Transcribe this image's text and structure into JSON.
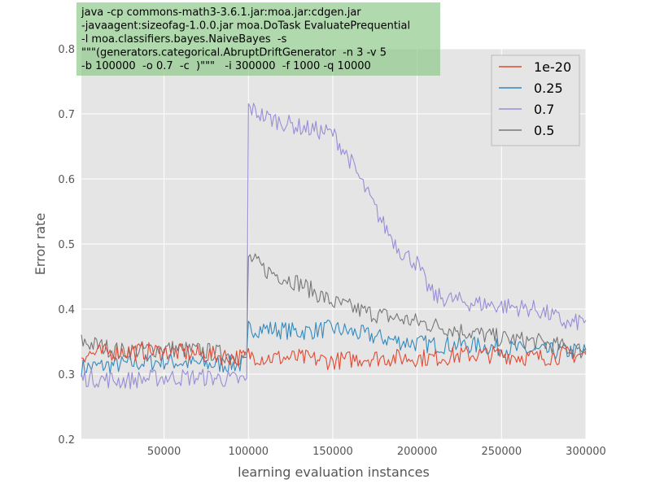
{
  "chart_data": {
    "type": "line",
    "title": "",
    "xlabel": "learning evaluation instances",
    "ylabel": "Error rate",
    "xlim": [
      1000,
      300000
    ],
    "ylim": [
      0.2,
      0.8
    ],
    "xticks": [
      50000,
      100000,
      150000,
      200000,
      250000,
      300000
    ],
    "yticks": [
      0.2,
      0.3,
      0.4,
      0.5,
      0.6,
      0.7,
      0.8
    ],
    "grid": true,
    "legend_position": "top-right",
    "annotation": [
      "java -cp commons-math3-3.6.1.jar:moa.jar:cdgen.jar",
      "-javaagent:sizeofag-1.0.0.jar moa.DoTask EvaluatePrequential",
      "-l moa.classifiers.bayes.NaiveBayes  -s",
      "\"\"\"(generators.categorical.AbruptDriftGenerator  -n 3 -v 5",
      "-b 100000  -o 0.7  -c  )\"\"\"   -i 300000  -f 1000 -q 10000"
    ],
    "series": [
      {
        "name": "1e-20",
        "color": "#e24a33",
        "x": [
          1000,
          25000,
          50000,
          75000,
          99000,
          100000,
          110000,
          130000,
          150000,
          170000,
          190000,
          210000,
          230000,
          250000,
          270000,
          290000,
          300000
        ],
        "y": [
          0.33,
          0.335,
          0.335,
          0.33,
          0.325,
          0.33,
          0.325,
          0.325,
          0.32,
          0.325,
          0.325,
          0.325,
          0.33,
          0.33,
          0.325,
          0.33,
          0.33
        ]
      },
      {
        "name": "0.25",
        "color": "#348abd",
        "x": [
          1000,
          25000,
          50000,
          75000,
          99000,
          100000,
          110000,
          130000,
          150000,
          170000,
          190000,
          210000,
          230000,
          250000,
          270000,
          290000,
          300000
        ],
        "y": [
          0.31,
          0.315,
          0.32,
          0.315,
          0.315,
          0.37,
          0.37,
          0.365,
          0.37,
          0.36,
          0.35,
          0.345,
          0.345,
          0.34,
          0.335,
          0.335,
          0.335
        ]
      },
      {
        "name": "0.7",
        "color": "#988ed5",
        "x": [
          1000,
          25000,
          50000,
          75000,
          99000,
          100000,
          110000,
          130000,
          150000,
          160000,
          170000,
          180000,
          190000,
          200000,
          205000,
          210000,
          230000,
          250000,
          270000,
          280000,
          290000,
          300000
        ],
        "y": [
          0.295,
          0.29,
          0.295,
          0.295,
          0.29,
          0.71,
          0.695,
          0.68,
          0.67,
          0.63,
          0.58,
          0.53,
          0.49,
          0.47,
          0.44,
          0.42,
          0.41,
          0.405,
          0.4,
          0.39,
          0.375,
          0.385
        ]
      },
      {
        "name": "0.5",
        "color": "#777777",
        "x": [
          1000,
          25000,
          50000,
          75000,
          99000,
          100000,
          105000,
          110000,
          130000,
          150000,
          170000,
          190000,
          210000,
          230000,
          250000,
          270000,
          290000,
          300000
        ],
        "y": [
          0.35,
          0.335,
          0.34,
          0.335,
          0.325,
          0.48,
          0.47,
          0.46,
          0.44,
          0.41,
          0.395,
          0.385,
          0.375,
          0.365,
          0.355,
          0.35,
          0.34,
          0.335
        ]
      }
    ]
  }
}
